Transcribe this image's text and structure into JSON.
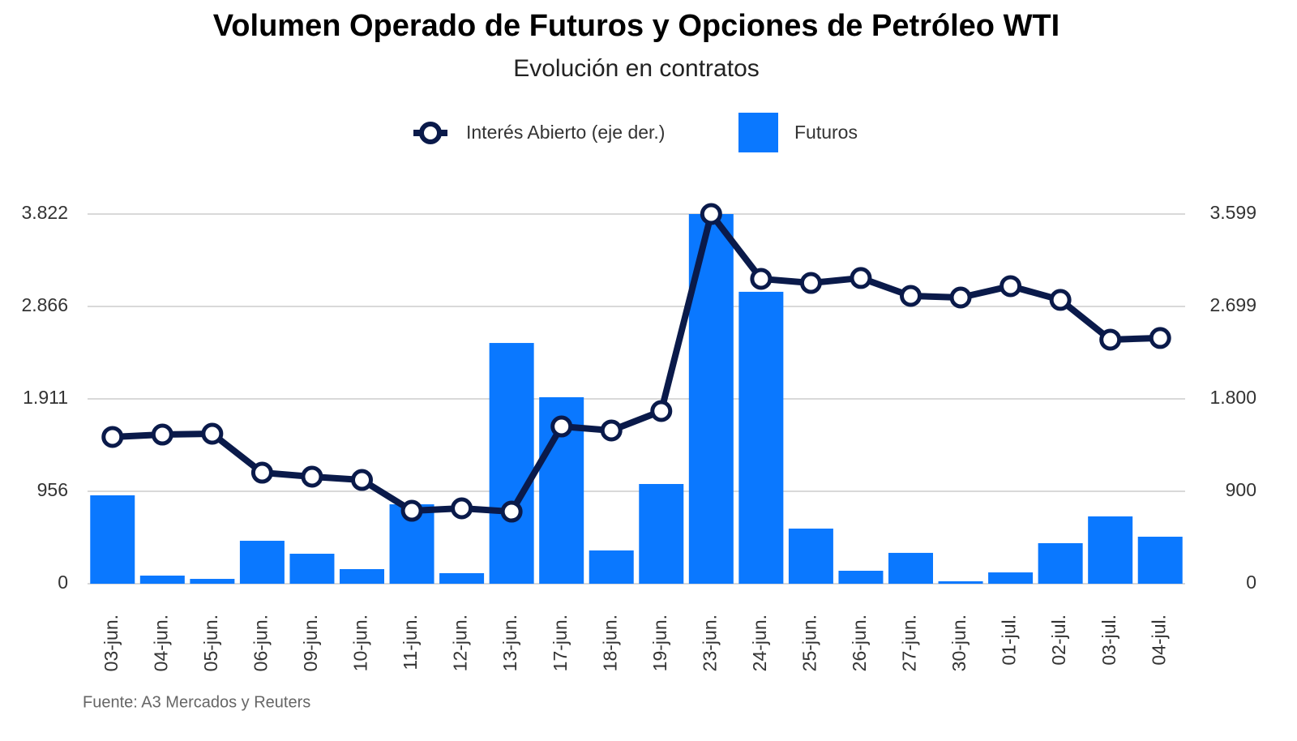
{
  "chart_data": {
    "type": "bar_line",
    "title": "Volumen Operado de Futuros y Opciones de Petróleo WTI",
    "subtitle": "Evolución en contratos",
    "source": "Fuente: A3 Mercados y Reuters",
    "categories": [
      "03-jun.",
      "04-jun.",
      "05-jun.",
      "06-jun.",
      "09-jun.",
      "10-jun.",
      "11-jun.",
      "12-jun.",
      "13-jun.",
      "17-jun.",
      "18-jun.",
      "19-jun.",
      "23-jun.",
      "24-jun.",
      "25-jun.",
      "26-jun.",
      "27-jun.",
      "30-jun.",
      "01-jul.",
      "02-jul.",
      "03-jul.",
      "04-jul."
    ],
    "series": [
      {
        "name": "Interés Abierto (eje der.)",
        "color": "#0a1a4a",
        "axis": "y2",
        "type": "line",
        "values": [
          1429,
          1452,
          1460,
          1081,
          1042,
          1010,
          710,
          734,
          702,
          1531,
          1492,
          1681,
          3599,
          2968,
          2928,
          2976,
          2802,
          2786,
          2897,
          2763,
          2376,
          2392
        ]
      },
      {
        "name": "Futuros",
        "color": "#0a78ff",
        "type": "bar",
        "values": [
          914,
          84,
          50,
          444,
          310,
          151,
          821,
          109,
          2489,
          1928,
          344,
          1031,
          3822,
          3018,
          570,
          134,
          319,
          25,
          117,
          419,
          696,
          486
        ]
      }
    ],
    "ylim": [
      0,
      3822
    ],
    "yticks": [
      0,
      956,
      {
        "value": 1911,
        "label": "1.911"
      },
      {
        "value": 2866,
        "label": "2.866"
      },
      {
        "value": 3822,
        "label": "3.822"
      }
    ],
    "y2lim": [
      0,
      3599
    ],
    "y2ticks": [
      0,
      900,
      {
        "value": 1800,
        "label": "1.800"
      },
      {
        "value": 2699,
        "label": "2.699"
      },
      {
        "value": 3599,
        "label": "3.599"
      }
    ],
    "grid": true
  }
}
